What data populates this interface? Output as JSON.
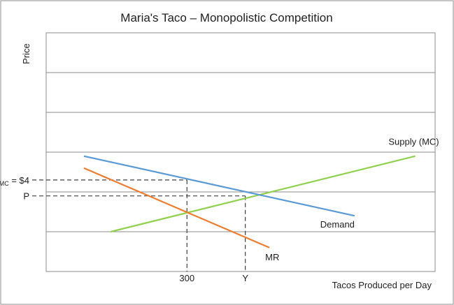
{
  "chart_data": {
    "type": "line",
    "title": "Maria's Taco – Monopolistic Competition",
    "ylabel": "Price",
    "xlabel": "Tacos Produced per Day",
    "grid": true,
    "legend": "none",
    "xlim": [
      0,
      1000
    ],
    "ylim": [
      0,
      6
    ],
    "series": [
      {
        "name": "Supply (MC)",
        "color": "#92d050",
        "x": [
          166,
          949
        ],
        "y": [
          1.0,
          2.9
        ]
      },
      {
        "name": "Demand",
        "color": "#5b9bd5",
        "x": [
          97,
          793
        ],
        "y": [
          2.9,
          1.4
        ]
      },
      {
        "name": "MR",
        "color": "#ed7d31",
        "x": [
          97,
          574
        ],
        "y": [
          2.6,
          0.6
        ]
      }
    ],
    "reference_lines": [
      {
        "label_main": "P",
        "label_sub": "MC",
        "label_suffix": " = $4",
        "y": 2.3,
        "x_end": 362
      },
      {
        "label_main": "P",
        "label_sub": "",
        "label_suffix": "",
        "y": 1.9,
        "x_end": 512
      }
    ],
    "x_ticks": [
      {
        "label": "300",
        "x": 362,
        "y_top": 2.3
      },
      {
        "label": "Y",
        "x": 512,
        "y_top": 1.9
      }
    ],
    "colors": {
      "grid": "#8c8c8c",
      "guide": "#404040",
      "frame": "#8c8c8c"
    }
  }
}
